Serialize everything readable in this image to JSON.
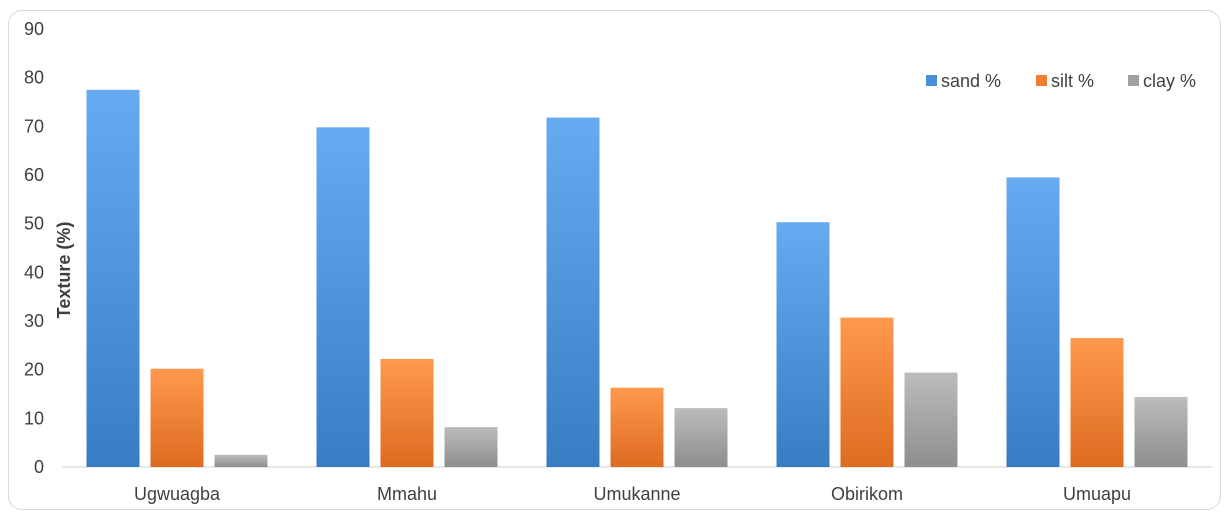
{
  "chart_data": {
    "type": "bar",
    "title": "",
    "xlabel": "",
    "ylabel": "Texture (%)",
    "ylim": [
      0,
      90
    ],
    "yticks": [
      0,
      10,
      20,
      30,
      40,
      50,
      60,
      70,
      80,
      90
    ],
    "grid": false,
    "legend_position": "top-right",
    "categories": [
      "Ugwuagba",
      "Mmahu",
      "Umukanne",
      "Obirikom",
      "Umuapu"
    ],
    "series": [
      {
        "name": "sand %",
        "color": "#4a8fd6",
        "values": [
          77.5,
          69.8,
          71.8,
          50.3,
          59.5
        ]
      },
      {
        "name": "silt %",
        "color": "#ef7d32",
        "values": [
          20.2,
          22.2,
          16.3,
          30.7,
          26.5
        ]
      },
      {
        "name": "clay %",
        "color": "#a0a0a0",
        "values": [
          2.5,
          8.2,
          12.1,
          19.4,
          14.4
        ]
      }
    ]
  }
}
